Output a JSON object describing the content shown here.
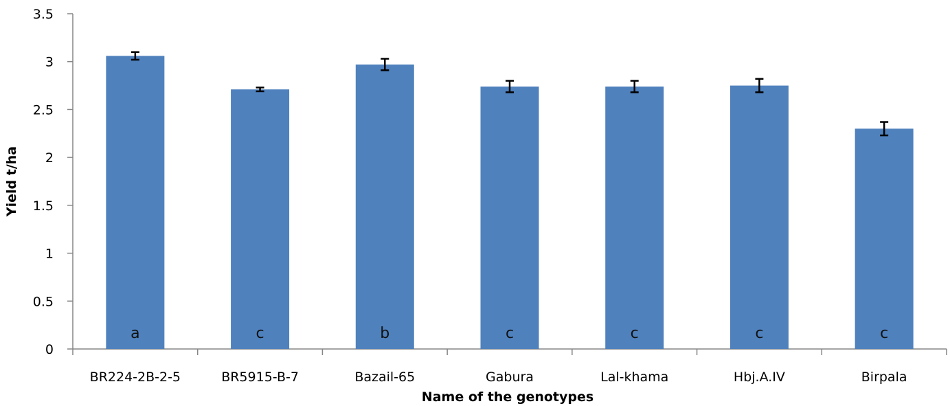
{
  "chart_data": {
    "type": "bar",
    "title": "",
    "xlabel": "Name of the genotypes",
    "ylabel": "Yield t/ha",
    "categories": [
      "BR224-2B-2-5",
      "BR5915-B-7",
      "Bazail-65",
      "Gabura",
      "Lal-khama",
      "Hbj.A.IV",
      "Birpala"
    ],
    "series": [
      {
        "values": [
          3.06,
          2.71,
          2.97,
          2.74,
          2.74,
          2.75,
          2.3
        ],
        "errors": [
          0.04,
          0.02,
          0.06,
          0.06,
          0.06,
          0.07,
          0.07
        ],
        "labels": [
          "a",
          "c",
          "b",
          "c",
          "c",
          "c",
          "c"
        ],
        "color": "#4f81bd"
      }
    ],
    "ylim": [
      0,
      3.5
    ],
    "yticks": [
      "0",
      "0.5",
      "1",
      "1.5",
      "2",
      "2.5",
      "3",
      "3.5"
    ],
    "grid": false,
    "legend": "none"
  }
}
